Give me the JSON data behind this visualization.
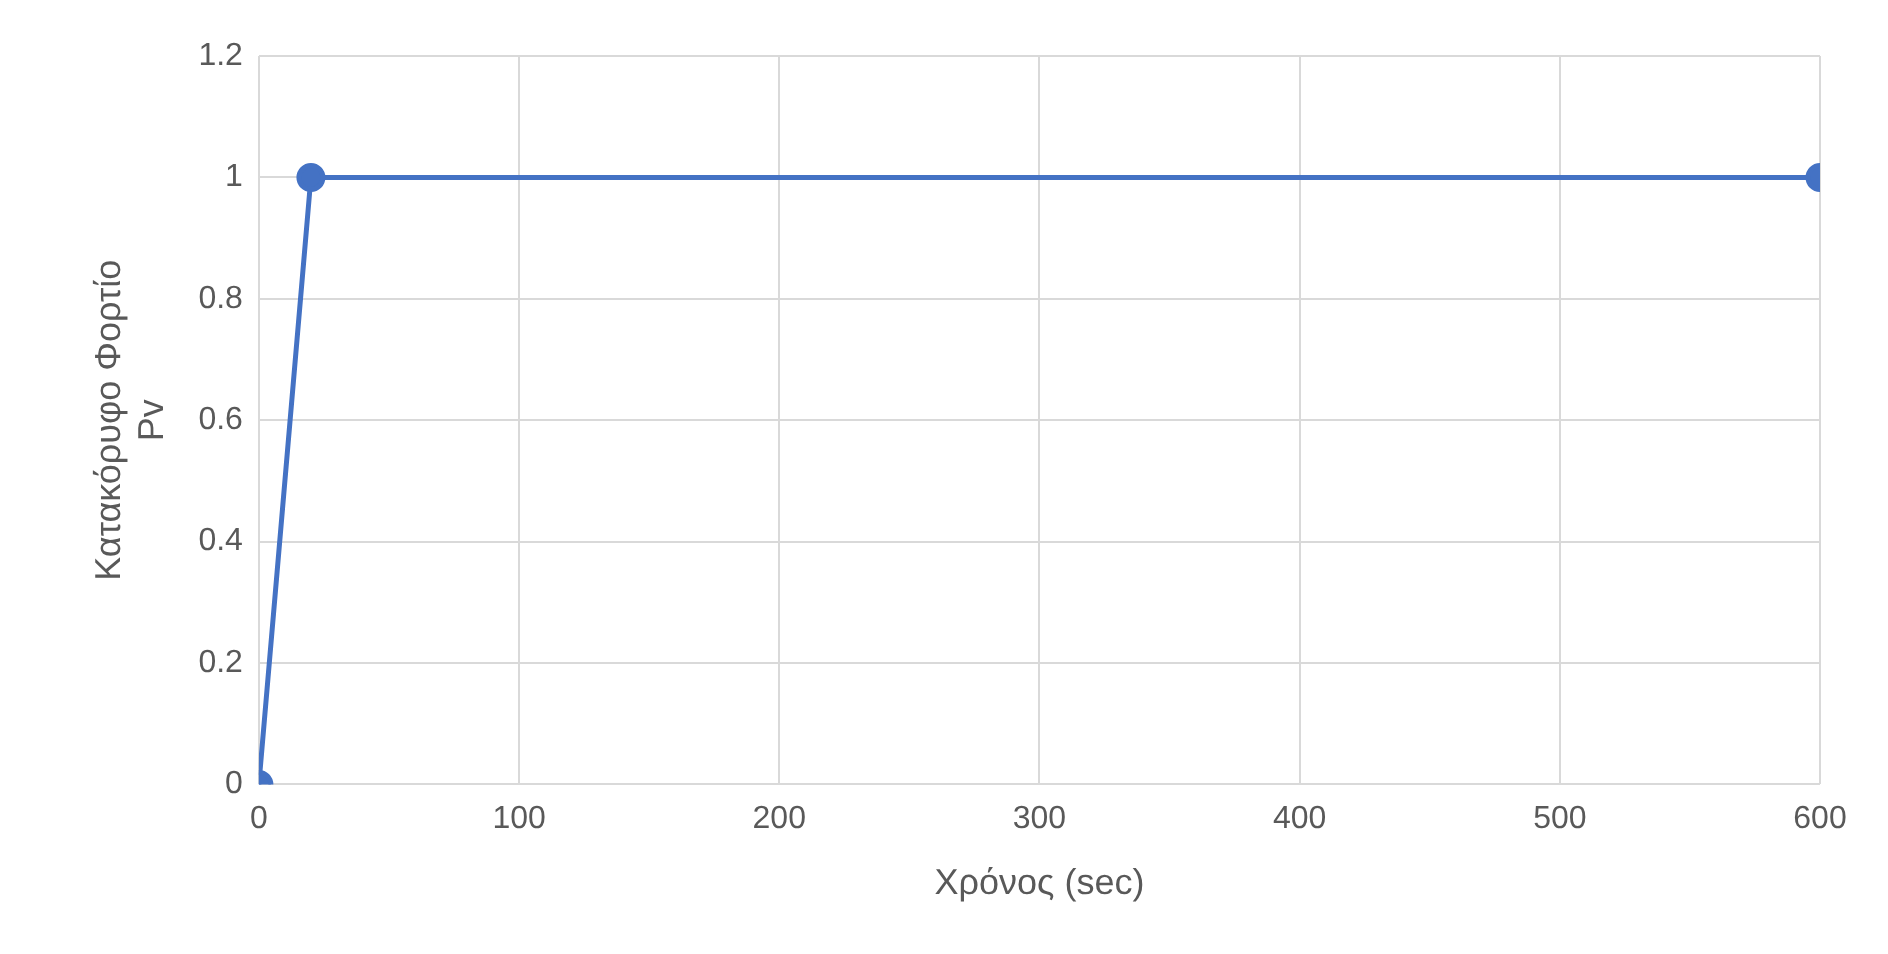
{
  "chart_data": {
    "type": "line",
    "xlabel": "Χρόνος (sec)",
    "ylabel": "Κατακόρυφο Φορτίο\nPv",
    "x": [
      0,
      20,
      600
    ],
    "series": [
      {
        "color": "#4472c4",
        "values": [
          0,
          1,
          1
        ]
      }
    ],
    "xlim": [
      0,
      600
    ],
    "xticks": [
      0,
      100,
      200,
      300,
      400,
      500,
      600
    ],
    "ylim": [
      0,
      1.2
    ],
    "yticks": [
      0,
      0.2,
      0.4,
      0.6,
      0.8,
      1,
      1.2
    ],
    "grid": true,
    "legend": false,
    "marker": "circle",
    "line_style": "solid"
  }
}
